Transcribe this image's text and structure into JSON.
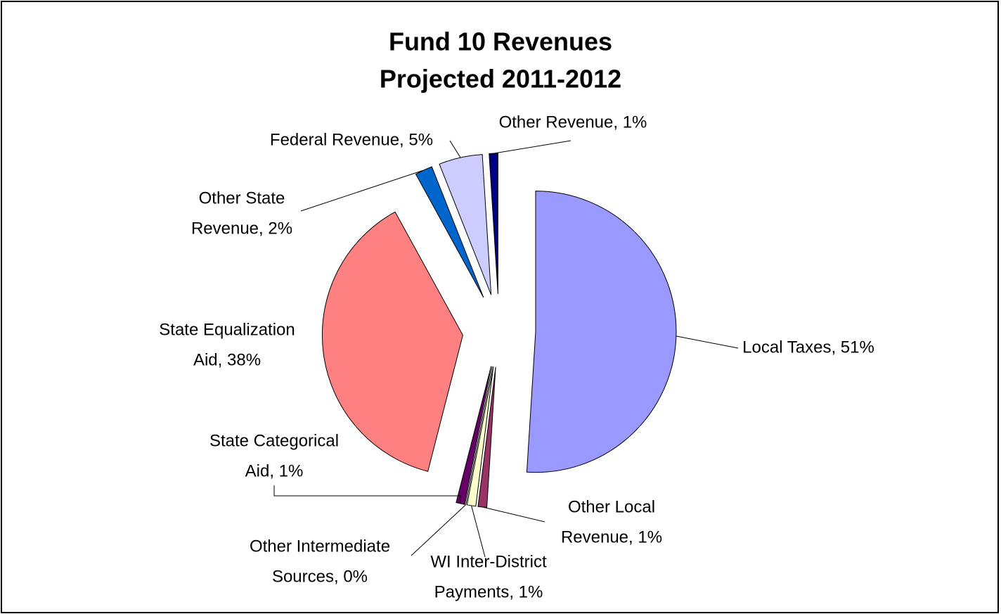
{
  "chart_data": {
    "type": "pie",
    "title": [
      "Fund 10 Revenues",
      "Projected 2011-2012"
    ],
    "values": [
      51,
      1,
      1,
      0,
      1,
      38,
      2,
      5,
      1
    ],
    "value_labels": [
      [
        "Local Taxes, 51%"
      ],
      [
        "Other Local",
        "Revenue, 1%"
      ],
      [
        "WI Inter-District",
        "Payments, 1%"
      ],
      [
        "Other Intermediate",
        "Sources, 0%"
      ],
      [
        "State Categorical",
        "Aid, 1%"
      ],
      [
        "State Equalization",
        "Aid, 38%"
      ],
      [
        "Other State",
        "Revenue, 2%"
      ],
      [
        "Federal Revenue, 5%"
      ],
      [
        "Other Revenue, 1%"
      ]
    ],
    "colors": [
      "#9999ff",
      "#993366",
      "#ffffcc",
      "#ccffff",
      "#660066",
      "#ff8080",
      "#0066cc",
      "#ccccff",
      "#000080"
    ],
    "exploded": true
  }
}
